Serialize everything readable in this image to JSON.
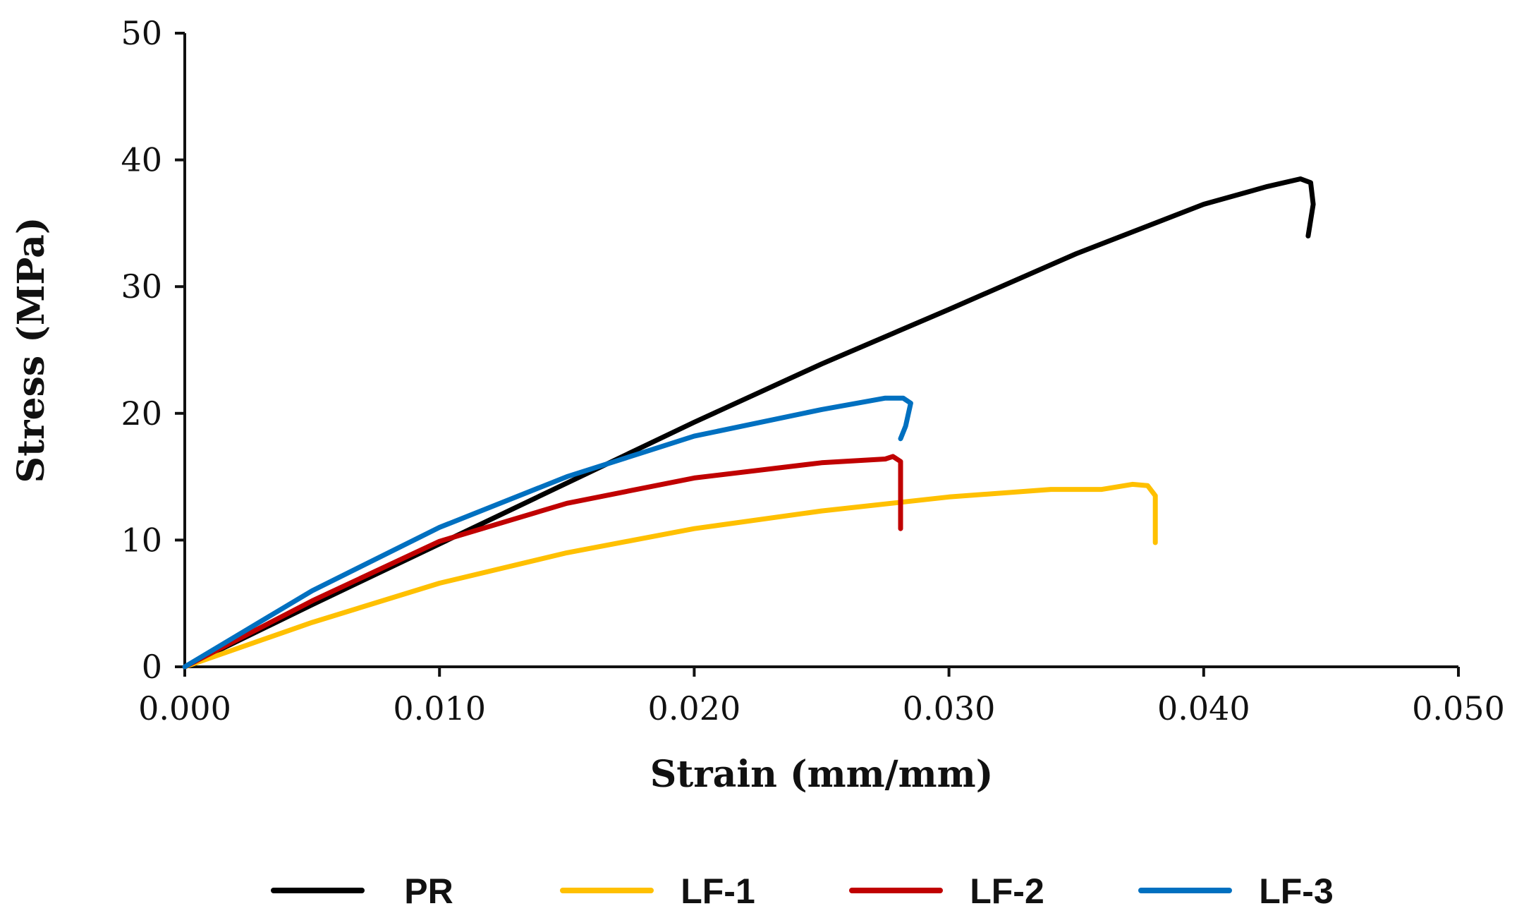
{
  "chart_data": {
    "type": "line",
    "title": "",
    "xlabel": "Strain (mm/mm)",
    "ylabel": "Stress (MPa)",
    "xlim": [
      0,
      0.05
    ],
    "ylim": [
      0,
      50
    ],
    "x_ticks": [
      "0.000",
      "0.010",
      "0.020",
      "0.030",
      "0.040",
      "0.050"
    ],
    "y_ticks": [
      "0",
      "10",
      "20",
      "30",
      "40",
      "50"
    ],
    "grid": false,
    "legend_position": "bottom",
    "series": [
      {
        "name": "PR",
        "color": "#000000",
        "points": [
          [
            0,
            0
          ],
          [
            0.005,
            4.9
          ],
          [
            0.01,
            9.7
          ],
          [
            0.015,
            14.5
          ],
          [
            0.02,
            19.3
          ],
          [
            0.025,
            23.9
          ],
          [
            0.03,
            28.2
          ],
          [
            0.035,
            32.6
          ],
          [
            0.04,
            36.5
          ],
          [
            0.0425,
            37.9
          ],
          [
            0.0438,
            38.5
          ],
          [
            0.0442,
            38.2
          ],
          [
            0.0443,
            36.5
          ],
          [
            0.0441,
            34.0
          ]
        ]
      },
      {
        "name": "LF-1",
        "color": "#FFC000",
        "points": [
          [
            0,
            0
          ],
          [
            0.005,
            3.5
          ],
          [
            0.01,
            6.6
          ],
          [
            0.015,
            9.0
          ],
          [
            0.02,
            10.9
          ],
          [
            0.025,
            12.3
          ],
          [
            0.03,
            13.4
          ],
          [
            0.034,
            14.0
          ],
          [
            0.036,
            14.0
          ],
          [
            0.0372,
            14.4
          ],
          [
            0.0378,
            14.3
          ],
          [
            0.0381,
            13.5
          ],
          [
            0.0381,
            9.8
          ]
        ]
      },
      {
        "name": "LF-2",
        "color": "#C00000",
        "points": [
          [
            0,
            0
          ],
          [
            0.005,
            5.2
          ],
          [
            0.01,
            9.9
          ],
          [
            0.015,
            12.9
          ],
          [
            0.02,
            14.9
          ],
          [
            0.025,
            16.1
          ],
          [
            0.0275,
            16.4
          ],
          [
            0.0278,
            16.6
          ],
          [
            0.0281,
            16.2
          ],
          [
            0.0281,
            13.0
          ],
          [
            0.0281,
            10.9
          ]
        ]
      },
      {
        "name": "LF-3",
        "color": "#0070C0",
        "points": [
          [
            0,
            0
          ],
          [
            0.005,
            6.0
          ],
          [
            0.01,
            11.0
          ],
          [
            0.015,
            15.0
          ],
          [
            0.02,
            18.2
          ],
          [
            0.025,
            20.3
          ],
          [
            0.0275,
            21.2
          ],
          [
            0.0282,
            21.2
          ],
          [
            0.0285,
            20.8
          ],
          [
            0.0283,
            19.0
          ],
          [
            0.0281,
            18.0
          ]
        ]
      }
    ]
  }
}
